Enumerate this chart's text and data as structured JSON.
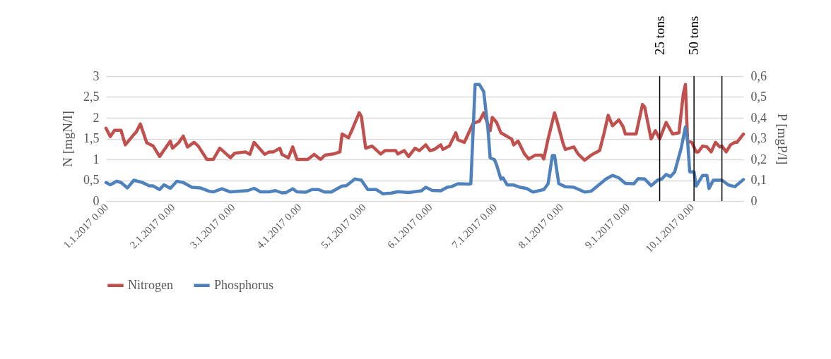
{
  "chart_data": {
    "type": "line",
    "ylabel": "N [mgN/l]",
    "y2label": "P [mgP/l]",
    "xlim": [
      "2017-01-01",
      "2017-10-25"
    ],
    "xticks": [
      {
        "value": "2017-01-01",
        "label": "1.1.2017 0.00"
      },
      {
        "value": "2017-02-01",
        "label": "2.1.2017 0.00"
      },
      {
        "value": "2017-03-01",
        "label": "3.1.2017 0.00"
      },
      {
        "value": "2017-04-01",
        "label": "4.1.2017 0.00"
      },
      {
        "value": "2017-05-01",
        "label": "5.1.2017 0.00"
      },
      {
        "value": "2017-06-01",
        "label": "6.1.2017 0.00"
      },
      {
        "value": "2017-07-01",
        "label": "7.1.2017 0.00"
      },
      {
        "value": "2017-08-01",
        "label": "8.1.2017 0.00"
      },
      {
        "value": "2017-09-01",
        "label": "9.1.2017 0.00"
      },
      {
        "value": "2017-10-01",
        "label": "10.1.2017 0.00"
      }
    ],
    "ylim": [
      0,
      3
    ],
    "yticks": [
      0,
      {
        "value": 0.5,
        "label": "0,5"
      },
      1,
      {
        "value": 1.5,
        "label": "1,5"
      },
      2,
      {
        "value": 2.5,
        "label": "2,5"
      },
      3
    ],
    "y2lim": [
      0,
      0.6
    ],
    "y2ticks": [
      0,
      {
        "value": 0.1,
        "label": "0,1"
      },
      {
        "value": 0.2,
        "label": "0,2"
      },
      {
        "value": 0.3,
        "label": "0,3"
      },
      {
        "value": 0.4,
        "label": "0,4"
      },
      {
        "value": 0.5,
        "label": "0,5"
      },
      {
        "value": 0.6,
        "label": "0,6"
      }
    ],
    "grid": "y",
    "legend": "bottom",
    "ref_lines": [
      {
        "axis": "x",
        "value": "2017-09-16",
        "label": "25 tons",
        "color": "#000000"
      },
      {
        "axis": "x",
        "value": "2017-10-02",
        "label": "50 tons",
        "color": "#000000"
      },
      {
        "axis": "x",
        "value": "2017-10-15",
        "label": null,
        "color": "#000000"
      }
    ],
    "series": [
      {
        "name": "Nitrogen",
        "color": "#c0504d",
        "x": [
          "2017-01-01",
          "2017-01-03",
          "2017-01-05",
          "2017-01-08",
          "2017-01-10",
          "2017-01-14",
          "2017-01-15",
          "2017-01-17",
          "2017-01-20",
          "2017-01-23",
          "2017-01-26",
          "2017-01-28",
          "2017-01-31",
          "2017-02-01",
          "2017-02-04",
          "2017-02-06",
          "2017-02-08",
          "2017-02-11",
          "2017-02-13",
          "2017-02-17",
          "2017-02-20",
          "2017-02-23",
          "2017-02-25",
          "2017-02-28",
          "2017-03-02",
          "2017-03-07",
          "2017-03-09",
          "2017-03-11",
          "2017-03-16",
          "2017-03-18",
          "2017-03-20",
          "2017-03-23",
          "2017-03-24",
          "2017-03-27",
          "2017-03-29",
          "2017-03-31",
          "2017-04-05",
          "2017-04-08",
          "2017-04-11",
          "2017-04-13",
          "2017-04-17",
          "2017-04-20",
          "2017-04-21",
          "2017-04-24",
          "2017-04-26",
          "2017-04-29",
          "2017-04-30",
          "2017-05-02",
          "2017-05-05",
          "2017-05-09",
          "2017-05-11",
          "2017-05-16",
          "2017-05-17",
          "2017-05-20",
          "2017-05-22",
          "2017-05-25",
          "2017-05-27",
          "2017-05-30",
          "2017-06-01",
          "2017-06-03",
          "2017-06-06",
          "2017-06-07",
          "2017-06-10",
          "2017-06-13",
          "2017-06-14",
          "2017-06-17",
          "2017-06-21",
          "2017-06-24",
          "2017-06-26",
          "2017-06-29",
          "2017-06-30",
          "2017-07-02",
          "2017-07-04",
          "2017-07-06",
          "2017-07-09",
          "2017-07-10",
          "2017-07-12",
          "2017-07-15",
          "2017-07-17",
          "2017-07-20",
          "2017-07-23",
          "2017-07-24",
          "2017-07-26",
          "2017-07-29",
          "2017-07-30",
          "2017-08-02",
          "2017-08-03",
          "2017-08-07",
          "2017-08-09",
          "2017-08-12",
          "2017-08-15",
          "2017-08-16",
          "2017-08-19",
          "2017-08-21",
          "2017-08-23",
          "2017-08-25",
          "2017-08-28",
          "2017-08-30",
          "2017-08-31",
          "2017-09-05",
          "2017-09-08",
          "2017-09-09",
          "2017-09-12",
          "2017-09-14",
          "2017-09-16",
          "2017-09-19",
          "2017-09-22",
          "2017-09-25",
          "2017-09-27",
          "2017-09-28",
          "2017-09-29",
          "2017-10-01",
          "2017-10-03",
          "2017-10-04",
          "2017-10-06",
          "2017-10-08",
          "2017-10-10",
          "2017-10-12",
          "2017-10-14",
          "2017-10-15",
          "2017-10-17",
          "2017-10-19",
          "2017-10-21",
          "2017-10-22",
          "2017-10-25"
        ],
        "values": [
          1.75,
          1.55,
          1.7,
          1.7,
          1.35,
          1.6,
          1.65,
          1.85,
          1.4,
          1.32,
          1.07,
          1.22,
          1.44,
          1.27,
          1.41,
          1.56,
          1.3,
          1.41,
          1.32,
          1.0,
          1.0,
          1.27,
          1.18,
          1.04,
          1.15,
          1.18,
          1.12,
          1.41,
          1.12,
          1.18,
          1.18,
          1.27,
          1.12,
          1.04,
          1.3,
          1.0,
          1.0,
          1.12,
          1.0,
          1.1,
          1.13,
          1.18,
          1.61,
          1.52,
          1.75,
          2.12,
          2.03,
          1.27,
          1.32,
          1.13,
          1.21,
          1.21,
          1.13,
          1.21,
          1.07,
          1.27,
          1.21,
          1.35,
          1.21,
          1.24,
          1.35,
          1.24,
          1.32,
          1.64,
          1.47,
          1.41,
          1.86,
          1.92,
          2.12,
          1.69,
          2.01,
          1.89,
          1.64,
          1.58,
          1.49,
          1.35,
          1.44,
          1.13,
          1.01,
          1.1,
          1.1,
          1.01,
          1.49,
          2.12,
          1.95,
          1.38,
          1.24,
          1.3,
          1.13,
          0.98,
          1.1,
          1.13,
          1.21,
          1.61,
          2.06,
          1.81,
          1.95,
          1.78,
          1.61,
          1.61,
          2.32,
          2.26,
          1.49,
          1.69,
          1.49,
          1.89,
          1.61,
          1.64,
          2.57,
          2.8,
          1.44,
          1.41,
          1.18,
          1.18,
          1.32,
          1.3,
          1.18,
          1.41,
          1.3,
          1.32,
          1.18,
          1.35,
          1.41,
          1.41,
          1.61
        ]
      },
      {
        "name": "Phosphorus",
        "color": "#4f81bd",
        "axis": "y2",
        "x": [
          "2017-01-01",
          "2017-01-03",
          "2017-01-06",
          "2017-01-08",
          "2017-01-11",
          "2017-01-14",
          "2017-01-18",
          "2017-01-21",
          "2017-01-23",
          "2017-01-26",
          "2017-01-28",
          "2017-01-31",
          "2017-02-03",
          "2017-02-06",
          "2017-02-10",
          "2017-02-14",
          "2017-02-18",
          "2017-02-20",
          "2017-02-24",
          "2017-02-28",
          "2017-03-08",
          "2017-03-11",
          "2017-03-14",
          "2017-03-18",
          "2017-03-21",
          "2017-03-24",
          "2017-03-26",
          "2017-03-29",
          "2017-03-31",
          "2017-04-04",
          "2017-04-07",
          "2017-04-10",
          "2017-04-13",
          "2017-04-16",
          "2017-04-21",
          "2017-04-23",
          "2017-04-27",
          "2017-04-30",
          "2017-05-03",
          "2017-05-07",
          "2017-05-10",
          "2017-05-14",
          "2017-05-17",
          "2017-05-22",
          "2017-05-28",
          "2017-05-30",
          "2017-06-02",
          "2017-06-06",
          "2017-06-09",
          "2017-06-11",
          "2017-06-14",
          "2017-06-19",
          "2017-06-20",
          "2017-06-22",
          "2017-06-24",
          "2017-06-26",
          "2017-06-28",
          "2017-06-29",
          "2017-07-01",
          "2017-07-02",
          "2017-07-04",
          "2017-07-05",
          "2017-07-07",
          "2017-07-10",
          "2017-07-13",
          "2017-07-16",
          "2017-07-19",
          "2017-07-24",
          "2017-07-26",
          "2017-07-28",
          "2017-07-29",
          "2017-07-31",
          "2017-08-03",
          "2017-08-07",
          "2017-08-12",
          "2017-08-15",
          "2017-08-18",
          "2017-08-22",
          "2017-08-25",
          "2017-08-28",
          "2017-08-31",
          "2017-09-04",
          "2017-09-06",
          "2017-09-09",
          "2017-09-12",
          "2017-09-15",
          "2017-09-17",
          "2017-09-19",
          "2017-09-21",
          "2017-09-23",
          "2017-09-26",
          "2017-09-28",
          "2017-09-29",
          "2017-09-30",
          "2017-10-02",
          "2017-10-03",
          "2017-10-06",
          "2017-10-08",
          "2017-10-09",
          "2017-10-11",
          "2017-10-15",
          "2017-10-18",
          "2017-10-21",
          "2017-10-25"
        ],
        "values": [
          0.089,
          0.078,
          0.095,
          0.089,
          0.063,
          0.1,
          0.089,
          0.074,
          0.072,
          0.055,
          0.078,
          0.061,
          0.095,
          0.089,
          0.066,
          0.063,
          0.047,
          0.044,
          0.059,
          0.044,
          0.05,
          0.061,
          0.044,
          0.044,
          0.05,
          0.039,
          0.041,
          0.059,
          0.044,
          0.042,
          0.055,
          0.055,
          0.043,
          0.043,
          0.072,
          0.074,
          0.106,
          0.1,
          0.055,
          0.055,
          0.035,
          0.038,
          0.045,
          0.041,
          0.049,
          0.066,
          0.051,
          0.049,
          0.066,
          0.069,
          0.083,
          0.081,
          0.083,
          0.56,
          0.56,
          0.526,
          0.344,
          0.208,
          0.199,
          0.174,
          0.106,
          0.111,
          0.077,
          0.077,
          0.066,
          0.06,
          0.043,
          0.055,
          0.083,
          0.219,
          0.219,
          0.083,
          0.069,
          0.066,
          0.043,
          0.047,
          0.072,
          0.106,
          0.123,
          0.111,
          0.085,
          0.083,
          0.108,
          0.106,
          0.074,
          0.1,
          0.106,
          0.128,
          0.117,
          0.14,
          0.253,
          0.356,
          0.29,
          0.14,
          0.14,
          0.072,
          0.123,
          0.123,
          0.06,
          0.1,
          0.1,
          0.077,
          0.069,
          0.103
        ]
      }
    ]
  }
}
